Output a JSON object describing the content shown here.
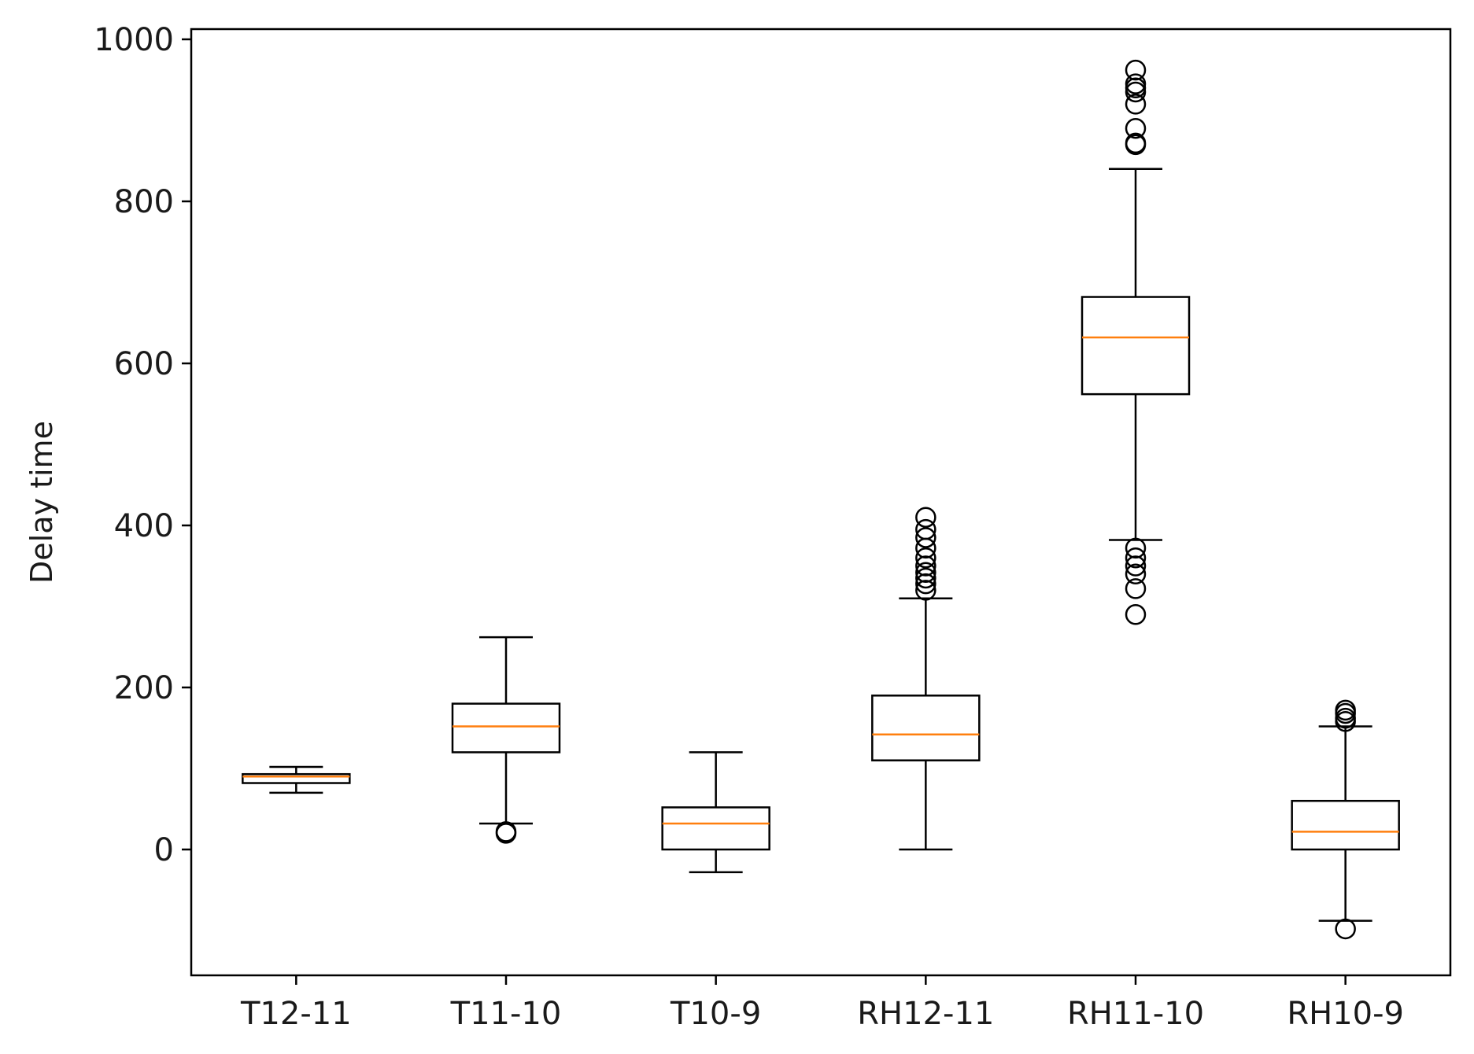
{
  "chart_data": {
    "type": "box",
    "title": "",
    "xlabel": "",
    "ylabel": "Delay time",
    "ylim": [
      -150,
      1015
    ],
    "yticks": [
      0,
      200,
      400,
      600,
      800,
      1000
    ],
    "ytick_labels": [
      "0",
      "200",
      "400",
      "600",
      "800",
      "1000"
    ],
    "categories": [
      "T12-11",
      "T11-10",
      "T10-9",
      "RH12-11",
      "RH11-10",
      "RH10-9"
    ],
    "boxes": [
      {
        "name": "T12-11",
        "whisker_low": 70,
        "q1": 82,
        "median": 90,
        "q3": 93,
        "whisker_high": 102,
        "outliers": []
      },
      {
        "name": "T11-10",
        "whisker_low": 32,
        "q1": 120,
        "median": 152,
        "q3": 180,
        "whisker_high": 262,
        "outliers": [
          20,
          22
        ]
      },
      {
        "name": "T10-9",
        "whisker_low": -28,
        "q1": 0,
        "median": 32,
        "q3": 52,
        "whisker_high": 120,
        "outliers": []
      },
      {
        "name": "RH12-11",
        "whisker_low": 0,
        "q1": 110,
        "median": 142,
        "q3": 190,
        "whisker_high": 310,
        "outliers": [
          320,
          328,
          335,
          342,
          350,
          360,
          372,
          385,
          395,
          410
        ]
      },
      {
        "name": "RH11-10",
        "whisker_low": 382,
        "q1": 562,
        "median": 632,
        "q3": 682,
        "whisker_high": 840,
        "outliers": [
          290,
          322,
          340,
          350,
          360,
          372,
          870,
          872,
          890,
          920,
          935,
          940,
          945,
          962
        ]
      },
      {
        "name": "RH10-9",
        "whisker_low": -88,
        "q1": 0,
        "median": 22,
        "q3": 60,
        "whisker_high": 152,
        "outliers": [
          -98,
          158,
          162,
          168,
          172
        ]
      }
    ],
    "colors": {
      "box": "#000000",
      "median": "#ff7f0e",
      "text": "#1a1a1a",
      "background": "#ffffff"
    }
  }
}
